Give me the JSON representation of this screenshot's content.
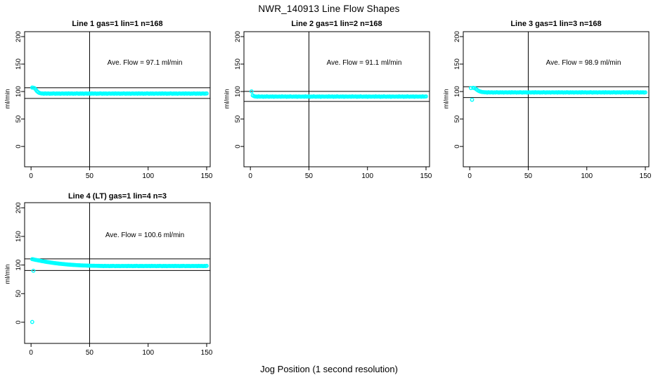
{
  "main_title": "NWR_140913  Line Flow Shapes",
  "x_axis_label": "Jog Position (1 second resolution)",
  "colors": {
    "points": "#00ffff",
    "axis": "#000000",
    "background": "#ffffff"
  },
  "marker": "open-circle",
  "chart_data": [
    {
      "type": "scatter",
      "title": "Line 1 gas=1 lin=1 n=168",
      "annotation": "Ave. Flow =  97.1  ml/min",
      "ave_flow_ml_min": 97.1,
      "ylabel": "ml/min",
      "x_ticks": [
        0,
        50,
        100,
        150
      ],
      "y_ticks": [
        0,
        50,
        100,
        150,
        200
      ],
      "xlim": [
        -5.5,
        153
      ],
      "ylim": [
        -37,
        209
      ],
      "vline_x": 50,
      "hlines": [
        106.8,
        87.4
      ],
      "x_start": 1,
      "y": [
        107.2,
        107.0,
        106.2,
        103.5,
        100.8,
        98.9,
        97.6,
        96.9,
        96.5,
        96.5,
        96.0,
        96.7,
        96.2,
        96.3,
        96.6,
        95.9,
        96.4,
        96.1,
        96.7,
        96.3,
        96.0,
        96.5,
        96.2,
        96.6,
        95.9,
        96.4,
        96.5,
        96.1,
        96.3,
        96.5,
        96.0,
        96.7,
        96.2,
        96.3,
        96.6,
        95.9,
        96.4,
        96.1,
        96.7,
        96.3,
        96.0,
        96.5,
        96.2,
        96.6,
        95.9,
        96.4,
        96.5,
        96.1,
        96.3,
        96.5,
        96.0,
        96.7,
        96.2,
        96.3,
        96.6,
        95.9,
        96.4,
        96.1,
        96.7,
        96.3,
        96.0,
        96.5,
        96.2,
        96.6,
        95.9,
        96.4,
        96.5,
        96.1,
        96.3,
        96.5,
        96.0,
        96.7,
        96.2,
        96.3,
        96.6,
        95.9,
        96.4,
        96.1,
        96.7,
        96.3,
        96.0,
        96.5,
        96.2,
        96.6,
        95.9,
        96.4,
        96.5,
        96.1,
        96.3,
        96.5,
        96.0,
        96.7,
        96.2,
        96.3,
        96.6,
        95.9,
        96.4,
        96.1,
        96.7,
        96.3,
        96.0,
        96.5,
        96.2,
        96.6,
        95.9,
        96.4,
        96.5,
        96.1,
        96.3,
        96.5,
        96.0,
        96.7,
        96.2,
        96.3,
        96.6,
        95.9,
        96.4,
        96.1,
        96.7,
        96.3,
        96.0,
        96.5,
        96.2,
        96.6,
        95.9,
        96.4,
        96.5,
        96.1,
        96.3,
        96.5,
        96.0,
        96.7,
        96.2,
        96.3,
        96.6,
        95.9,
        96.4,
        96.1,
        96.7,
        96.3,
        96.0,
        96.5,
        96.2,
        96.6,
        95.9,
        96.4,
        96.5,
        96.1,
        96.3,
        96.5
      ],
      "extra_points": []
    },
    {
      "type": "scatter",
      "title": "Line 2 gas=1 lin=2 n=168",
      "annotation": "Ave. Flow =  91.1  ml/min",
      "ave_flow_ml_min": 91.1,
      "ylabel": "ml/min",
      "x_ticks": [
        0,
        50,
        100,
        150
      ],
      "y_ticks": [
        0,
        50,
        100,
        150,
        200
      ],
      "xlim": [
        -5.5,
        153
      ],
      "ylim": [
        -37,
        209
      ],
      "vline_x": 50,
      "hlines": [
        100.2,
        82.0
      ],
      "x_start": 1,
      "y": [
        100.3,
        93.0,
        91.6,
        91.0,
        91.0,
        90.5,
        91.2,
        90.7,
        90.8,
        91.1,
        90.4,
        90.9,
        90.6,
        91.2,
        90.8,
        90.5,
        91.0,
        90.7,
        91.1,
        90.4,
        90.9,
        91.0,
        90.6,
        90.8,
        91.0,
        90.5,
        91.2,
        90.7,
        90.8,
        91.1,
        90.4,
        90.9,
        90.6,
        91.2,
        90.8,
        90.5,
        91.0,
        90.7,
        91.1,
        90.4,
        90.9,
        91.0,
        90.6,
        90.8,
        91.0,
        90.5,
        91.2,
        90.7,
        90.8,
        91.1,
        90.4,
        90.9,
        90.6,
        91.2,
        90.8,
        90.5,
        91.0,
        90.7,
        91.1,
        90.4,
        90.9,
        91.0,
        90.6,
        90.8,
        91.0,
        90.5,
        91.2,
        90.7,
        90.8,
        91.1,
        90.4,
        90.9,
        90.6,
        91.2,
        90.8,
        90.5,
        91.0,
        90.7,
        91.1,
        90.4,
        90.9,
        91.0,
        90.6,
        90.8,
        91.0,
        90.5,
        91.2,
        90.7,
        90.8,
        91.1,
        90.4,
        90.9,
        90.6,
        91.2,
        90.8,
        90.5,
        91.0,
        90.7,
        91.1,
        90.4,
        90.9,
        91.0,
        90.6,
        90.8,
        91.0,
        90.5,
        91.2,
        90.7,
        90.8,
        91.1,
        90.4,
        90.9,
        90.6,
        91.2,
        90.8,
        90.5,
        91.0,
        90.7,
        91.1,
        90.4,
        90.9,
        91.0,
        90.6,
        90.8,
        91.0,
        90.5,
        91.2,
        90.7,
        90.8,
        91.1,
        90.4,
        90.9,
        90.6,
        91.2,
        90.8,
        90.5,
        91.0,
        90.7,
        91.1,
        90.4,
        90.9,
        91.0,
        90.6,
        90.8,
        91.0,
        90.5,
        91.2,
        90.7,
        90.8,
        91.1
      ],
      "extra_points": []
    },
    {
      "type": "scatter",
      "title": "Line 3 gas=1 lin=3 n=168",
      "annotation": "Ave. Flow =  98.9  ml/min",
      "ave_flow_ml_min": 98.9,
      "ylabel": "ml/min",
      "x_ticks": [
        0,
        50,
        100,
        150
      ],
      "y_ticks": [
        0,
        50,
        100,
        150,
        200
      ],
      "xlim": [
        -5.5,
        153
      ],
      "ylim": [
        -37,
        209
      ],
      "vline_x": 50,
      "hlines": [
        108.8,
        89.0
      ],
      "x_start": 1,
      "y": [
        106.3,
        85.0,
        106.8,
        106.3,
        105.2,
        103.6,
        102.0,
        100.8,
        100.0,
        99.4,
        99.0,
        98.8,
        98.6,
        98.6,
        98.1,
        98.8,
        98.3,
        98.4,
        98.7,
        98.0,
        98.5,
        98.2,
        98.8,
        98.4,
        98.1,
        98.6,
        98.3,
        98.7,
        98.0,
        98.5,
        98.6,
        98.2,
        98.4,
        98.6,
        98.1,
        98.8,
        98.3,
        98.4,
        98.7,
        98.0,
        98.5,
        98.2,
        98.8,
        98.4,
        98.1,
        98.6,
        98.3,
        98.7,
        98.0,
        98.5,
        98.6,
        98.2,
        98.4,
        98.6,
        98.1,
        98.8,
        98.3,
        98.4,
        98.7,
        98.0,
        98.5,
        98.2,
        98.8,
        98.4,
        98.1,
        98.6,
        98.3,
        98.7,
        98.0,
        98.5,
        98.6,
        98.2,
        98.4,
        98.6,
        98.1,
        98.8,
        98.3,
        98.4,
        98.7,
        98.0,
        98.5,
        98.2,
        98.8,
        98.4,
        98.1,
        98.6,
        98.3,
        98.7,
        98.0,
        98.5,
        98.6,
        98.2,
        98.4,
        98.6,
        98.1,
        98.8,
        98.3,
        98.4,
        98.7,
        98.0,
        98.5,
        98.2,
        98.8,
        98.4,
        98.1,
        98.6,
        98.3,
        98.7,
        98.0,
        98.5,
        98.6,
        98.2,
        98.4,
        98.6,
        98.1,
        98.8,
        98.3,
        98.4,
        98.7,
        98.0,
        98.5,
        98.2,
        98.8,
        98.4,
        98.1,
        98.6,
        98.3,
        98.7,
        98.0,
        98.5,
        98.6,
        98.2,
        98.4,
        98.6,
        98.1,
        98.8,
        98.3,
        98.4,
        98.7,
        98.0,
        98.5,
        98.2,
        98.8,
        98.4,
        98.1,
        98.6,
        98.3,
        98.7,
        98.0,
        98.5
      ],
      "extra_points": []
    },
    {
      "type": "scatter",
      "title": "Line 4 (LT) gas=1 lin=4 n=3",
      "annotation": "Ave. Flow =  100.6  ml/min",
      "ave_flow_ml_min": 100.6,
      "ylabel": "ml/min",
      "x_ticks": [
        0,
        50,
        100,
        150
      ],
      "y_ticks": [
        0,
        50,
        100,
        150,
        200
      ],
      "xlim": [
        -5.5,
        153
      ],
      "ylim": [
        -37,
        209
      ],
      "vline_x": 50,
      "hlines": [
        110.7,
        90.5
      ],
      "x_start": 1,
      "y": [
        110.3,
        109.9,
        109.4,
        109.0,
        108.6,
        108.2,
        107.8,
        107.4,
        107.0,
        106.6,
        106.3,
        105.9,
        105.6,
        105.2,
        104.9,
        104.6,
        104.3,
        104.0,
        103.7,
        103.4,
        103.2,
        102.9,
        102.7,
        102.4,
        102.2,
        102.0,
        101.8,
        101.6,
        101.4,
        101.2,
        101.0,
        100.8,
        100.7,
        100.5,
        100.4,
        100.2,
        100.1,
        100.0,
        99.8,
        99.7,
        99.6,
        99.5,
        99.4,
        99.3,
        99.2,
        99.2,
        99.1,
        99.0,
        98.9,
        98.9,
        98.8,
        98.8,
        98.7,
        98.7,
        98.6,
        98.6,
        98.5,
        98.5,
        98.4,
        98.4,
        98.4,
        98.1,
        98.5,
        98.2,
        98.3,
        98.4,
        98.0,
        98.4,
        98.2,
        98.5,
        98.3,
        98.1,
        98.4,
        98.2,
        98.4,
        98.1,
        98.3,
        98.4,
        98.2,
        98.3,
        98.4,
        98.1,
        98.5,
        98.2,
        98.3,
        98.4,
        98.0,
        98.4,
        98.2,
        98.5,
        98.3,
        98.1,
        98.4,
        98.2,
        98.4,
        98.1,
        98.3,
        98.4,
        98.2,
        98.3,
        98.4,
        98.1,
        98.5,
        98.2,
        98.3,
        98.4,
        98.0,
        98.4,
        98.2,
        98.5,
        98.3,
        98.1,
        98.4,
        98.2,
        98.4,
        98.1,
        98.3,
        98.4,
        98.2,
        98.3,
        98.4,
        98.1,
        98.5,
        98.2,
        98.3,
        98.4,
        98.0,
        98.4,
        98.2,
        98.5,
        98.3,
        98.1,
        98.4,
        98.2,
        98.4,
        98.1,
        98.3,
        98.4,
        98.2,
        98.3,
        98.4,
        98.1,
        98.5,
        98.2,
        98.3,
        98.4,
        98.0,
        98.4,
        98.2,
        98.5
      ],
      "extra_points": [
        [
          1,
          0.5
        ],
        [
          2,
          90.0
        ]
      ]
    }
  ]
}
